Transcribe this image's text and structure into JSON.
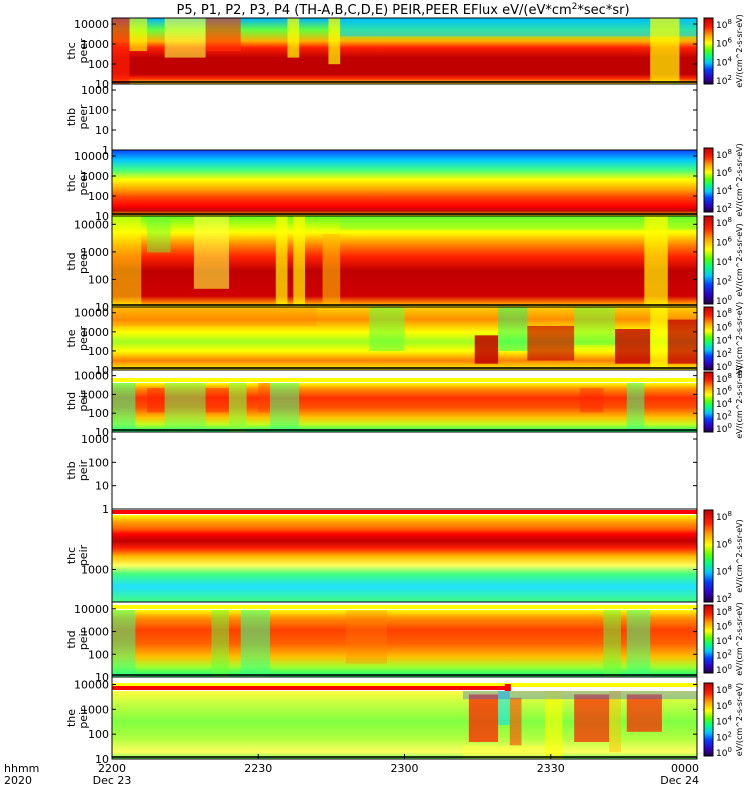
{
  "chart_data": {
    "type": "heatmap",
    "title": "P5, P1, P2, P3, P4 (TH-A,B,C,D,E) PEIR,PEER EFlux eV/(eV*cm^2*sec*sr)",
    "title_parts": {
      "pre": "P5, P1, P2, P3, P4 (TH-A,B,C,D,E) PEIR,PEER EFlux eV/(eV*cm",
      "sup1": "2",
      "mid": "*sec*sr)"
    },
    "x_axis": {
      "row_labels": [
        "hhmm",
        "2020"
      ],
      "ticks": [
        {
          "hhmm": "2200",
          "date": "Dec 23"
        },
        {
          "hhmm": "2230",
          "date": ""
        },
        {
          "hhmm": "2300",
          "date": ""
        },
        {
          "hhmm": "2330",
          "date": ""
        },
        {
          "hhmm": "0000",
          "date": "Dec 24"
        }
      ]
    },
    "colorbar": {
      "labels_pre": "10",
      "exponents_wide": [
        "8",
        "6",
        "4",
        "2"
      ],
      "exponents_low": [
        "8",
        "6",
        "4",
        "2",
        "0"
      ],
      "unit_text": "eV/(cm^2-s-sr-eV)"
    },
    "panels": [
      {
        "probe": "thc",
        "type": "peer",
        "yticks": [
          "10000",
          "1000",
          "100",
          "10"
        ],
        "ylim": [
          10,
          20000
        ],
        "has_data": true,
        "colorbar": "wide",
        "pattern": "a"
      },
      {
        "probe": "thb",
        "type": "peer",
        "yticks": [
          "1000",
          "100",
          "10",
          "1"
        ],
        "ylim": [
          1,
          2000
        ],
        "has_data": false,
        "colorbar": "none"
      },
      {
        "probe": "thc",
        "type": "peer",
        "yticks": [
          "10000",
          "1000",
          "100",
          "10"
        ],
        "ylim": [
          10,
          20000
        ],
        "has_data": true,
        "colorbar": "wide",
        "pattern": "bands"
      },
      {
        "probe": "thd",
        "type": "peer",
        "yticks": [
          "10000",
          "1000",
          "100",
          "10"
        ],
        "ylim": [
          10,
          20000
        ],
        "has_data": true,
        "colorbar": "low",
        "pattern": "d"
      },
      {
        "probe": "the",
        "type": "peer",
        "yticks": [
          "10000",
          "1000",
          "100",
          "10"
        ],
        "ylim": [
          10,
          20000
        ],
        "has_data": true,
        "colorbar": "low",
        "pattern": "e"
      },
      {
        "probe": "thd",
        "type": "peir",
        "yticks": [
          "10000",
          "1000",
          "100",
          "10"
        ],
        "ylim": [
          10,
          20000
        ],
        "has_data": true,
        "colorbar": "low",
        "pattern": "ion_d"
      },
      {
        "probe": "thb",
        "type": "peir",
        "yticks": [
          "1000",
          "100",
          "10",
          "1"
        ],
        "ylim": [
          1,
          2000
        ],
        "has_data": false,
        "colorbar": "none"
      },
      {
        "probe": "thc",
        "type": "peir",
        "yticks": [
          "1000"
        ],
        "ylim": [
          200,
          20000
        ],
        "has_data": true,
        "colorbar": "wide",
        "pattern": "ion_c"
      },
      {
        "probe": "thd",
        "type": "peir",
        "yticks": [
          "10000",
          "1000",
          "100",
          "10"
        ],
        "ylim": [
          10,
          20000
        ],
        "has_data": true,
        "colorbar": "low",
        "pattern": "ion_d2"
      },
      {
        "probe": "the",
        "type": "peir",
        "yticks": [
          "10000",
          "1000",
          "100",
          "10"
        ],
        "ylim": [
          10,
          20000
        ],
        "has_data": true,
        "colorbar": "low",
        "pattern": "ion_e"
      }
    ],
    "colors": {
      "red": "#ff0000",
      "yellow": "#ffff00",
      "darkred": "#c00000"
    }
  }
}
